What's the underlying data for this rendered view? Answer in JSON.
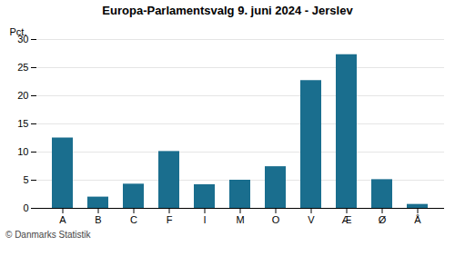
{
  "chart_data": {
    "type": "bar",
    "title": "Europa-Parlamentsvalg 9. juni 2024 - Jerslev",
    "categories": [
      "A",
      "B",
      "C",
      "F",
      "I",
      "M",
      "O",
      "V",
      "Æ",
      "Ø",
      "Å"
    ],
    "values": [
      12.5,
      2.0,
      4.3,
      10.1,
      4.2,
      5.0,
      7.4,
      22.7,
      27.3,
      5.1,
      0.7
    ],
    "color": "#1a6e8e",
    "ylabel": "Pct.",
    "caption": "© Danmarks Statistik",
    "ylim": [
      0,
      30
    ],
    "yticks": [
      0,
      5,
      10,
      15,
      20,
      25,
      30
    ],
    "grid": true
  }
}
